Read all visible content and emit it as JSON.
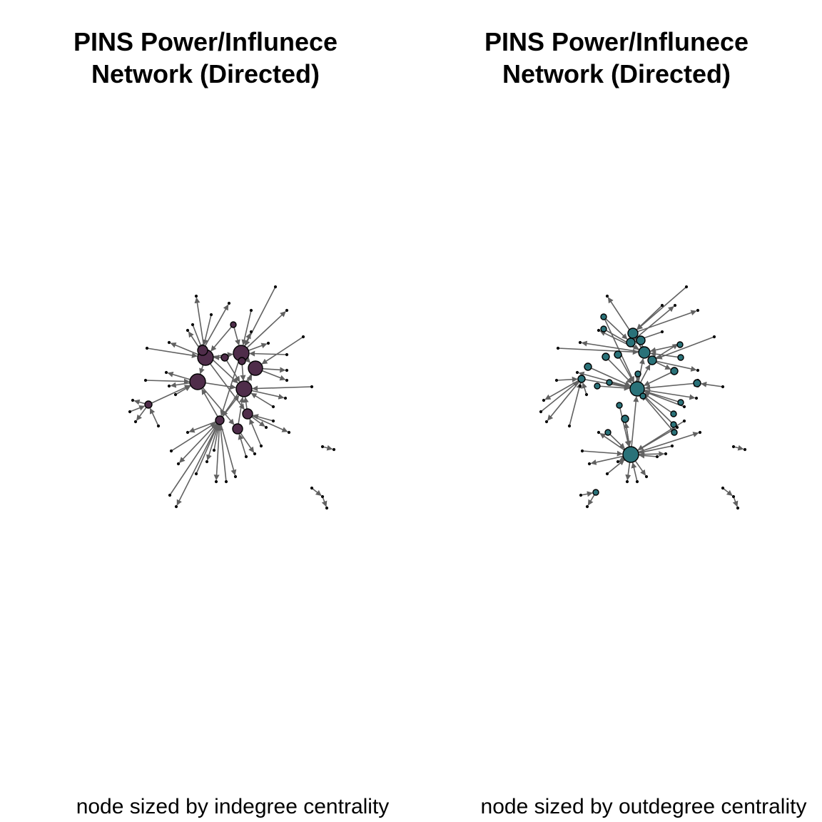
{
  "panels": [
    {
      "title_line1": "PINS Power/Influnece",
      "title_line2": "Network (Directed)",
      "caption": "node sized by indegree centrality",
      "node_color": "#4f2d4a",
      "edge_color": "#616161"
    },
    {
      "title_line1": "PINS Power/Influnece",
      "title_line2": "Network (Directed)",
      "caption": "node sized by outdegree centrality",
      "node_color": "#2a7279",
      "edge_color": "#616161"
    }
  ]
}
